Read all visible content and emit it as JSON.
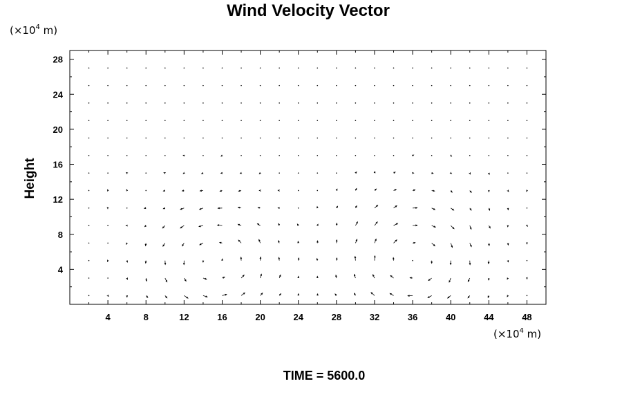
{
  "chart_data": {
    "type": "vector-field",
    "title": "Wind Velocity Vector",
    "ylabel": "Height",
    "x_scale_label": {
      "prefix": "(×10",
      "exponent": "4",
      "suffix": " m)"
    },
    "y_scale_label": {
      "prefix": "(×10",
      "exponent": "4",
      "suffix": " m)"
    },
    "xlim": [
      0,
      50
    ],
    "ylim": [
      0,
      29
    ],
    "xticks": [
      4,
      8,
      12,
      16,
      20,
      24,
      28,
      32,
      36,
      40,
      44,
      48
    ],
    "yticks": [
      4,
      8,
      12,
      16,
      20,
      24,
      28
    ],
    "x_minor_step": 2,
    "y_minor_step": 2,
    "grid": false,
    "time_label": "TIME = 5600.0",
    "grid_x_start": 2,
    "grid_x_step": 2,
    "grid_y_start": 1,
    "grid_y_step": 2,
    "vector_scale_units": 0.26,
    "cells": [
      {
        "center": [
          15,
          5
        ],
        "rx": 6,
        "ry": 6,
        "strength": 1.0,
        "rotation": 1
      },
      {
        "center": [
          36,
          5
        ],
        "rx": 6,
        "ry": 6,
        "strength": 1.0,
        "rotation": -1
      }
    ]
  }
}
